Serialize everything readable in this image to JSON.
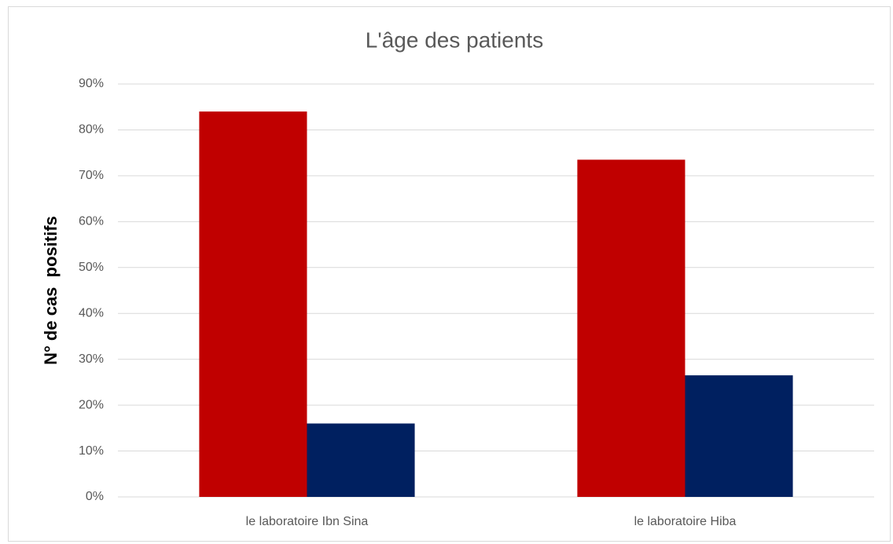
{
  "chart_data": {
    "type": "bar",
    "title": "L'âge des patients",
    "y_label": "N° de cas  positifs",
    "categories": [
      "le laboratoire Ibn Sina",
      "le laboratoire Hiba"
    ],
    "series": [
      {
        "color": "#c00000",
        "values": [
          84,
          73.5
        ]
      },
      {
        "color": "#002060",
        "values": [
          16,
          26.5
        ]
      }
    ],
    "ylim": [
      0,
      90
    ],
    "yticks": [
      {
        "value": 0,
        "label": "0%"
      },
      {
        "value": 10,
        "label": "10%"
      },
      {
        "value": 20,
        "label": "20%"
      },
      {
        "value": 30,
        "label": "30%"
      },
      {
        "value": 40,
        "label": "40%"
      },
      {
        "value": 50,
        "label": "50%"
      },
      {
        "value": 60,
        "label": "60%"
      },
      {
        "value": 70,
        "label": "70%"
      },
      {
        "value": 80,
        "label": "80%"
      },
      {
        "value": 90,
        "label": "90%"
      }
    ],
    "grid": true
  }
}
